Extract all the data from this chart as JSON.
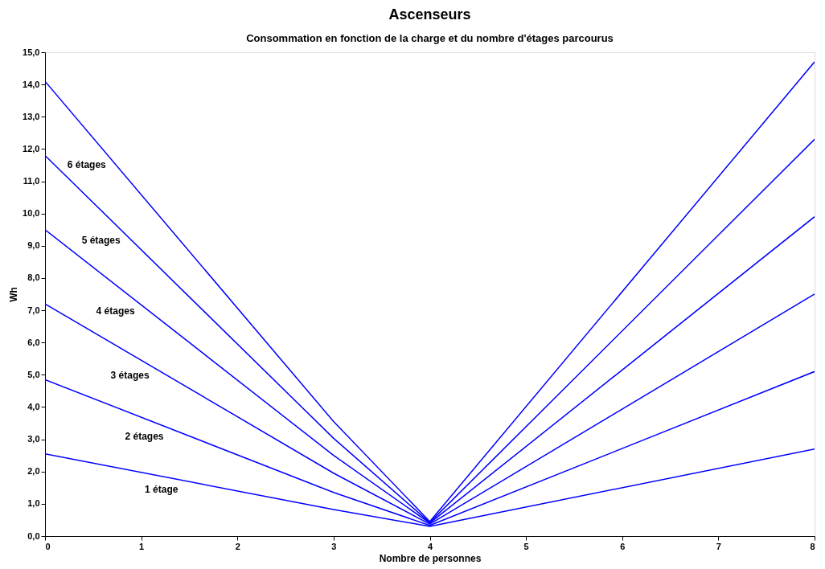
{
  "chart_data": {
    "type": "line",
    "title": "Ascenseurs",
    "subtitle": "Consommation en fonction de la charge et du nombre d'étages parcourus",
    "xlabel": "Nombre de personnes",
    "ylabel": "Wh",
    "x": [
      0,
      3,
      4,
      8
    ],
    "series": [
      {
        "name": "6 étages",
        "color": "#0000ff",
        "values": [
          14.1,
          3.55,
          0.45,
          14.7
        ]
      },
      {
        "name": "5 étages",
        "color": "#0000ff",
        "values": [
          11.8,
          3.03,
          0.42,
          12.3
        ]
      },
      {
        "name": "4 étages",
        "color": "#0000ff",
        "values": [
          9.5,
          2.5,
          0.4,
          9.9
        ]
      },
      {
        "name": "3 étages",
        "color": "#0000ff",
        "values": [
          7.2,
          1.95,
          0.37,
          7.5
        ]
      },
      {
        "name": "2 étages",
        "color": "#0000ff",
        "values": [
          4.85,
          1.35,
          0.33,
          5.1
        ]
      },
      {
        "name": "1 étage",
        "color": "#0000ff",
        "values": [
          2.55,
          0.82,
          0.3,
          2.7
        ]
      }
    ],
    "xlim": [
      0,
      8
    ],
    "xticks": [
      0,
      1,
      2,
      3,
      4,
      5,
      6,
      7,
      8
    ],
    "ylim": [
      0,
      15
    ],
    "yticks": [
      {
        "value": 0,
        "label": "0,0"
      },
      {
        "value": 1,
        "label": "1,0"
      },
      {
        "value": 2,
        "label": "2,0"
      },
      {
        "value": 3,
        "label": "3,0"
      },
      {
        "value": 4,
        "label": "4,0"
      },
      {
        "value": 5,
        "label": "5,0"
      },
      {
        "value": 6,
        "label": "6,0"
      },
      {
        "value": 7,
        "label": "7,0"
      },
      {
        "value": 8,
        "label": "8,0"
      },
      {
        "value": 9,
        "label": "9,0"
      },
      {
        "value": 10,
        "label": "10,0"
      },
      {
        "value": 11,
        "label": "11,0"
      },
      {
        "value": 12,
        "label": "12,0"
      },
      {
        "value": 13,
        "label": "13,0"
      },
      {
        "value": 14,
        "label": "14,0"
      },
      {
        "value": 15,
        "label": "15,0"
      }
    ],
    "grid": false,
    "marker": "none",
    "line_style": "solid"
  }
}
